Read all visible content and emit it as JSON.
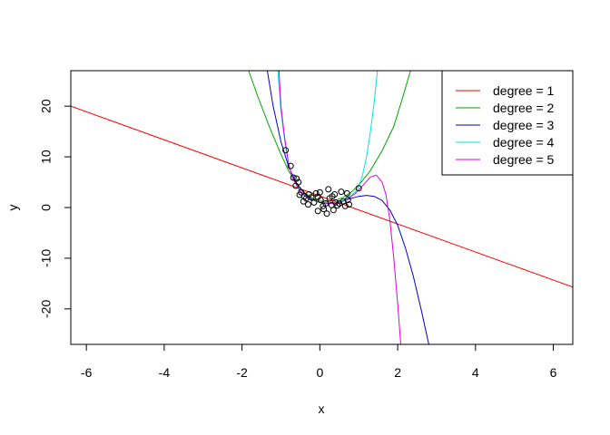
{
  "chart_data": {
    "type": "line",
    "title": "",
    "xlabel": "x",
    "ylabel": "y",
    "xlim": [
      -6.4,
      6.5
    ],
    "ylim": [
      -27,
      27
    ],
    "x_ticks": [
      -6,
      -4,
      -2,
      0,
      2,
      4,
      6
    ],
    "y_ticks": [
      -20,
      -10,
      0,
      10,
      20
    ],
    "grid": false,
    "legend_position": "top-right",
    "series": [
      {
        "name": "degree =  1",
        "color": "#FF0000",
        "points": [
          [
            -6.4,
            20.0
          ],
          [
            6.5,
            -15.7
          ]
        ]
      },
      {
        "name": "degree =  2",
        "color": "#00AA00",
        "points": [
          [
            -1.83,
            27.0
          ],
          [
            -1.6,
            22.0
          ],
          [
            -1.3,
            16.0
          ],
          [
            -1.0,
            10.5
          ],
          [
            -0.8,
            7.2
          ],
          [
            -0.6,
            4.8
          ],
          [
            -0.4,
            3.0
          ],
          [
            -0.2,
            1.9
          ],
          [
            0.0,
            1.3
          ],
          [
            0.2,
            1.2
          ],
          [
            0.4,
            1.4
          ],
          [
            0.6,
            2.0
          ],
          [
            0.8,
            3.0
          ],
          [
            1.0,
            4.4
          ],
          [
            1.3,
            7.3
          ],
          [
            1.6,
            11.2
          ],
          [
            1.9,
            16.0
          ],
          [
            2.1,
            21.0
          ],
          [
            2.33,
            27.0
          ]
        ]
      },
      {
        "name": "degree =  3",
        "color": "#0000CC",
        "points": [
          [
            -1.35,
            27.0
          ],
          [
            -1.2,
            20.0
          ],
          [
            -1.0,
            13.0
          ],
          [
            -0.8,
            8.0
          ],
          [
            -0.6,
            4.8
          ],
          [
            -0.4,
            2.8
          ],
          [
            -0.2,
            1.6
          ],
          [
            0.0,
            1.0
          ],
          [
            0.2,
            0.8
          ],
          [
            0.4,
            0.9
          ],
          [
            0.6,
            1.3
          ],
          [
            0.8,
            1.8
          ],
          [
            1.0,
            2.2
          ],
          [
            1.2,
            2.4
          ],
          [
            1.4,
            2.2
          ],
          [
            1.6,
            1.4
          ],
          [
            1.8,
            -0.5
          ],
          [
            2.0,
            -3.5
          ],
          [
            2.2,
            -8.0
          ],
          [
            2.4,
            -13.5
          ],
          [
            2.6,
            -20.0
          ],
          [
            2.8,
            -27.0
          ]
        ]
      },
      {
        "name": "degree =  4",
        "color": "#00E5E5",
        "points": [
          [
            -1.08,
            27.0
          ],
          [
            -1.0,
            19.0
          ],
          [
            -0.9,
            13.0
          ],
          [
            -0.8,
            8.5
          ],
          [
            -0.7,
            5.8
          ],
          [
            -0.5,
            3.0
          ],
          [
            -0.3,
            1.7
          ],
          [
            0.0,
            1.0
          ],
          [
            0.3,
            0.9
          ],
          [
            0.5,
            1.2
          ],
          [
            0.7,
            1.8
          ],
          [
            0.9,
            3.0
          ],
          [
            1.0,
            4.2
          ],
          [
            1.1,
            6.5
          ],
          [
            1.2,
            10.0
          ],
          [
            1.3,
            15.0
          ],
          [
            1.4,
            21.0
          ],
          [
            1.48,
            27.0
          ]
        ]
      },
      {
        "name": "degree =  5",
        "color": "#E000E0",
        "points": [
          [
            -1.05,
            27.0
          ],
          [
            -1.0,
            20.0
          ],
          [
            -0.9,
            13.5
          ],
          [
            -0.8,
            8.5
          ],
          [
            -0.7,
            5.8
          ],
          [
            -0.5,
            3.2
          ],
          [
            -0.3,
            1.8
          ],
          [
            0.0,
            1.0
          ],
          [
            0.3,
            0.8
          ],
          [
            0.5,
            1.0
          ],
          [
            0.7,
            1.6
          ],
          [
            0.9,
            2.7
          ],
          [
            1.1,
            4.3
          ],
          [
            1.3,
            6.0
          ],
          [
            1.45,
            6.4
          ],
          [
            1.6,
            5.0
          ],
          [
            1.7,
            2.5
          ],
          [
            1.8,
            -2.5
          ],
          [
            1.9,
            -10.0
          ],
          [
            2.0,
            -19.0
          ],
          [
            2.08,
            -27.0
          ]
        ]
      }
    ],
    "scatter_points": [
      [
        -0.88,
        11.3
      ],
      [
        -0.75,
        8.2
      ],
      [
        -0.68,
        5.9
      ],
      [
        -0.6,
        5.7
      ],
      [
        -0.55,
        5.0
      ],
      [
        -0.62,
        4.3
      ],
      [
        -0.48,
        3.0
      ],
      [
        -0.52,
        2.5
      ],
      [
        -0.4,
        2.2
      ],
      [
        -0.35,
        1.8
      ],
      [
        -0.42,
        1.2
      ],
      [
        -0.28,
        2.6
      ],
      [
        -0.22,
        2.0
      ],
      [
        -0.15,
        1.0
      ],
      [
        -0.1,
        2.8
      ],
      [
        -0.05,
        2.1
      ],
      [
        0.0,
        3.0
      ],
      [
        0.02,
        1.5
      ],
      [
        0.08,
        0.3
      ],
      [
        0.1,
        -0.3
      ],
      [
        0.18,
        -1.2
      ],
      [
        0.22,
        3.6
      ],
      [
        0.25,
        1.8
      ],
      [
        0.3,
        0.5
      ],
      [
        0.32,
        2.2
      ],
      [
        0.35,
        -0.5
      ],
      [
        0.4,
        1.0
      ],
      [
        0.45,
        0.4
      ],
      [
        0.5,
        0.8
      ],
      [
        0.55,
        3.1
      ],
      [
        0.6,
        1.2
      ],
      [
        0.65,
        0.3
      ],
      [
        0.7,
        2.8
      ],
      [
        0.72,
        1.5
      ],
      [
        0.75,
        0.6
      ],
      [
        1.0,
        3.8
      ],
      [
        -0.05,
        -0.7
      ],
      [
        0.15,
        0.8
      ],
      [
        -0.3,
        0.6
      ],
      [
        0.38,
        2.6
      ]
    ]
  }
}
